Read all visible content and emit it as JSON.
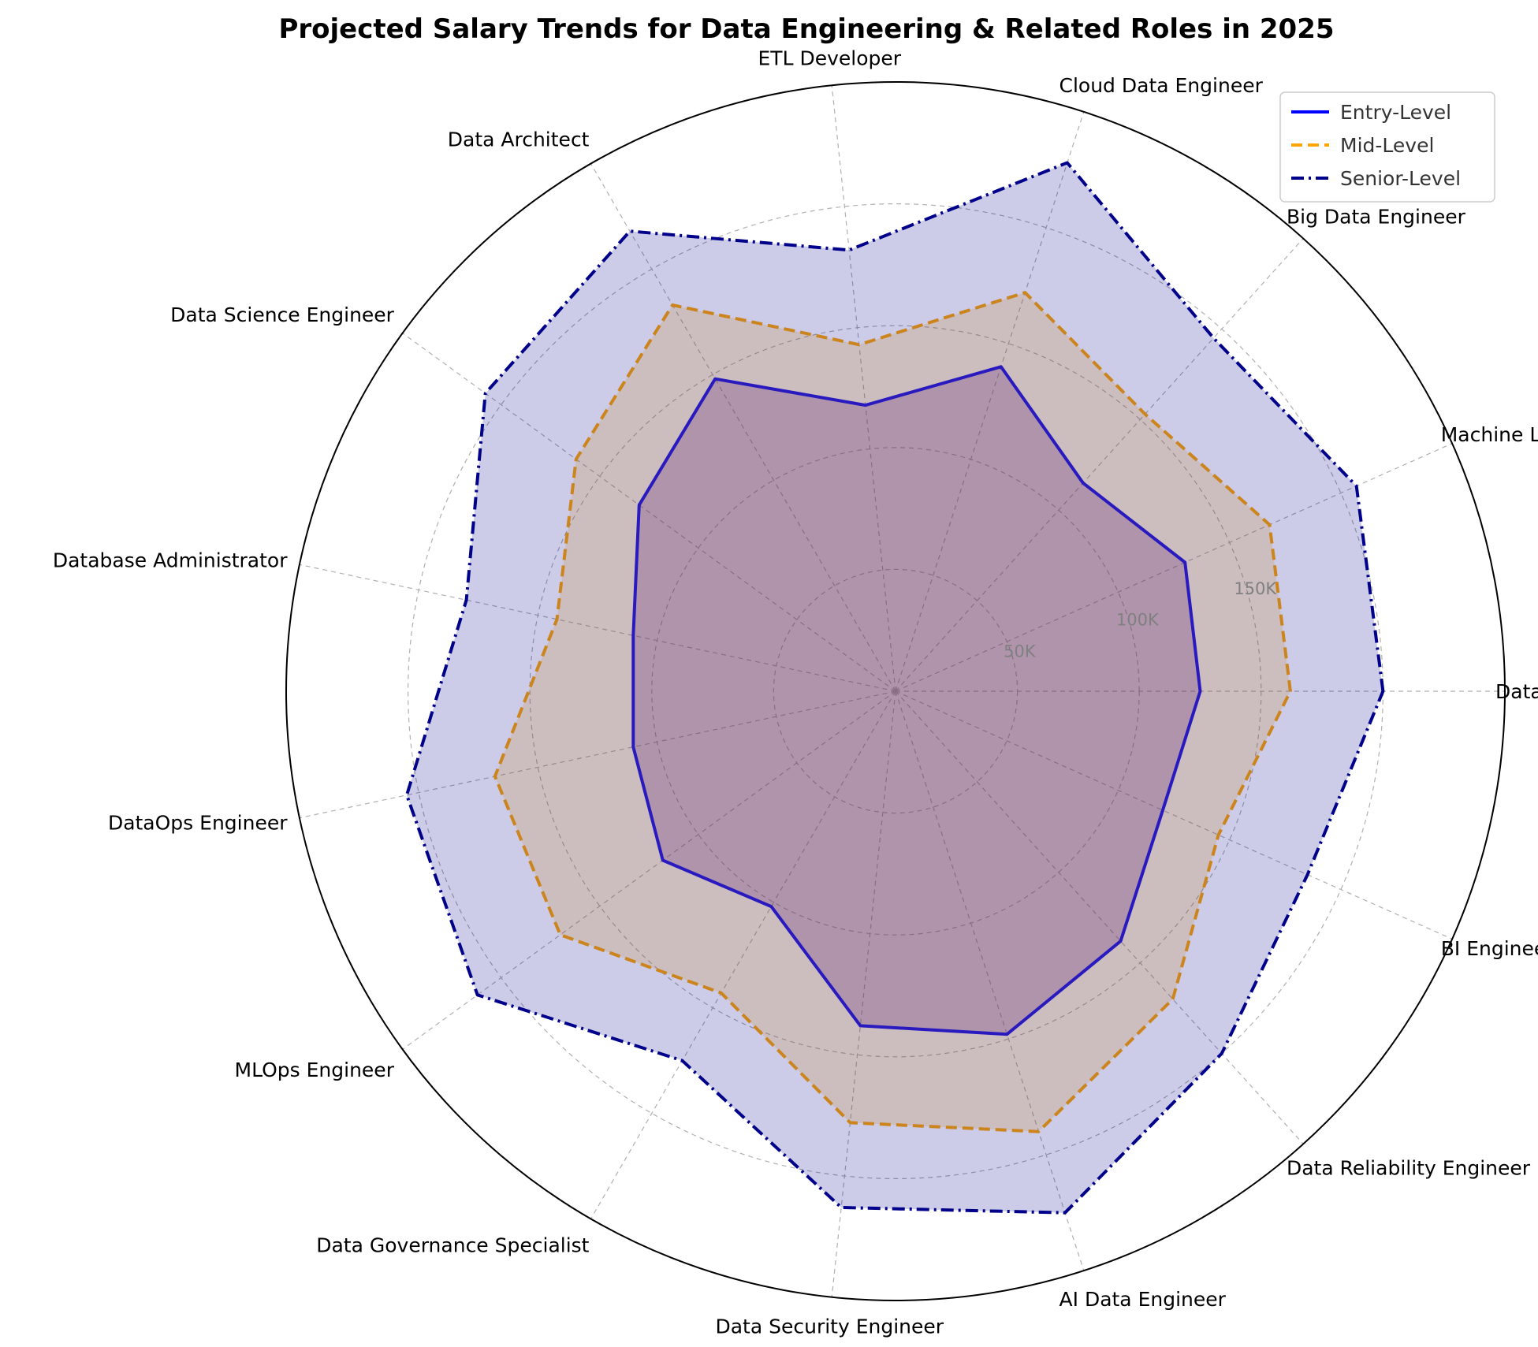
{
  "chart_data": {
    "type": "radar",
    "title": "Projected Salary Trends for Data Engineering & Related Roles in 2025",
    "categories": [
      "Data Engineer",
      "Machine Learning Engineer",
      "Big Data Engineer",
      "Cloud Data Engineer",
      "ETL Developer",
      "Data Architect",
      "Data Science Engineer",
      "Database Administrator",
      "DataOps Engineer",
      "MLOps Engineer",
      "Data Governance Specialist",
      "Data Security Engineer",
      "AI Data Engineer",
      "Data Reliability Engineer",
      "BI Engineer"
    ],
    "series": [
      {
        "name": "Entry-Level",
        "values": [
          125,
          130,
          115,
          140,
          118,
          148,
          130,
          110,
          110,
          118,
          102,
          138,
          148,
          138,
          120
        ],
        "color": "#0000ff",
        "line_style": "solid",
        "fill": "#4b0082",
        "fill_opacity": 0.25
      },
      {
        "name": "Mid-Level",
        "values": [
          162,
          168,
          153,
          172,
          143,
          183,
          162,
          142,
          168,
          170,
          143,
          178,
          190,
          170,
          145
        ],
        "color": "#ffa500",
        "line_style": "dashed",
        "fill": "#ffa500",
        "fill_opacity": 0.2
      },
      {
        "name": "Senior-Level",
        "values": [
          200,
          207,
          195,
          228,
          182,
          218,
          208,
          180,
          205,
          212,
          175,
          213,
          225,
          200,
          185
        ],
        "color": "#00008b",
        "line_style": "dashdot",
        "fill": "#00008b",
        "fill_opacity": 0.2
      }
    ],
    "radial_ticks": [
      50,
      100,
      150
    ],
    "radial_tick_labels": [
      "50K",
      "100K",
      "150K"
    ],
    "radial_max": 250,
    "grid": true,
    "legend_position": "top-right"
  }
}
